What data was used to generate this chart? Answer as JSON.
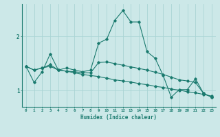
{
  "xlabel": "Humidex (Indice chaleur)",
  "ylabel": "",
  "bg_color": "#cce8e8",
  "line_color": "#1a7a6e",
  "grid_color": "#aad4d4",
  "xlim": [
    -0.5,
    23.5
  ],
  "ylim": [
    0.7,
    2.6
  ],
  "yticks": [
    1,
    2
  ],
  "xticks": [
    0,
    1,
    2,
    3,
    4,
    5,
    6,
    7,
    8,
    9,
    10,
    11,
    12,
    13,
    14,
    15,
    16,
    17,
    18,
    19,
    20,
    21,
    22,
    23
  ],
  "series": [
    [
      1.45,
      1.15,
      1.35,
      1.68,
      1.38,
      1.42,
      1.38,
      1.35,
      1.38,
      1.88,
      1.95,
      2.3,
      2.48,
      2.27,
      2.27,
      1.72,
      1.6,
      1.28,
      0.88,
      1.02,
      1.02,
      1.22,
      0.95,
      0.88
    ],
    [
      1.45,
      1.38,
      1.42,
      1.48,
      1.38,
      1.36,
      1.33,
      1.3,
      1.28,
      1.26,
      1.23,
      1.2,
      1.18,
      1.16,
      1.13,
      1.11,
      1.08,
      1.06,
      1.03,
      1.01,
      0.98,
      0.96,
      0.93,
      0.9
    ],
    [
      1.45,
      1.38,
      1.42,
      1.45,
      1.38,
      1.36,
      1.35,
      1.33,
      1.33,
      1.52,
      1.53,
      1.5,
      1.47,
      1.44,
      1.41,
      1.38,
      1.34,
      1.3,
      1.25,
      1.2,
      1.18,
      1.15,
      0.95,
      0.88
    ]
  ]
}
